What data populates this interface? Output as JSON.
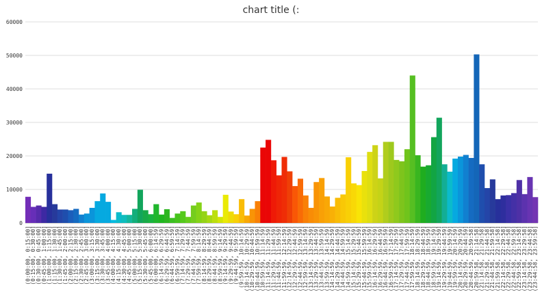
{
  "chart_data": {
    "type": "bar",
    "title": "chart title (:",
    "categories": [
      "(0:00:00, 0:15:00]",
      "(0:15:00, 0:30:00]",
      "(0:30:00, 0:45:00]",
      "(0:45:00, 1:00:00]",
      "(1:00:00, 1:15:00]",
      "(1:15:00, 1:30:00]",
      "(1:30:00, 1:45:00]",
      "(1:45:00, 2:00:00]",
      "(2:00:00, 2:15:00]",
      "(2:15:00, 2:30:00]",
      "(2:30:00, 2:45:00]",
      "(2:45:00, 3:00:00]",
      "(3:00:00, 3:15:00]",
      "(3:15:00, 3:30:00]",
      "(3:30:00, 3:45:00]",
      "(3:45:00, 4:00:00]",
      "(4:00:00, 4:15:00]",
      "(4:15:00, 4:30:00]",
      "(4:30:00, 4:45:00]",
      "(4:45:00, 5:00:00]",
      "(5:00:00, 5:15:00]",
      "(5:15:00, 5:30:00]",
      "(5:30:00, 5:45:00]",
      "(5:45:00, 6:00:00]",
      "(6:00:00, 6:14:59]",
      "(6:14:59, 6:29:59]",
      "(6:29:59, 6:44:59]",
      "(6:44:59, 6:59:59]",
      "(6:59:59, 7:14:59]",
      "(7:14:59, 7:29:59]",
      "(7:29:59, 7:44:59]",
      "(7:44:59, 7:59:59]",
      "(7:59:59, 8:14:59]",
      "(8:14:59, 8:29:59]",
      "(8:29:59, 8:44:59]",
      "(8:44:59, 8:59:59]",
      "(8:59:59, 9:14:59]",
      "(9:14:59, 9:29:59]",
      "(9:29:59, 9:44:59]",
      "(9:44:59, 9:59:59]",
      "(9:59:59, 10:14:59]",
      "(10:14:59, 10:29:59]",
      "(10:29:59, 10:44:59]",
      "(10:44:59, 10:59:59]",
      "(10:59:59, 11:14:59]",
      "(11:14:59, 11:29:59]",
      "(11:29:59, 11:44:59]",
      "(11:44:59, 11:59:59]",
      "(11:59:59, 12:14:59]",
      "(12:14:59, 12:29:59]",
      "(12:29:59, 12:44:59]",
      "(12:44:59, 12:59:59]",
      "(12:59:59, 13:14:59]",
      "(13:14:59, 13:29:59]",
      "(13:29:59, 13:44:59]",
      "(13:44:59, 13:59:59]",
      "(13:59:59, 14:14:59]",
      "(14:14:59, 14:29:59]",
      "(14:29:59, 14:44:59]",
      "(14:44:59, 14:59:59]",
      "(14:59:59, 15:14:59]",
      "(15:14:59, 15:29:59]",
      "(15:29:59, 15:44:59]",
      "(15:44:59, 15:59:59]",
      "(15:59:59, 16:14:59]",
      "(16:14:59, 16:29:59]",
      "(16:29:59, 16:44:59]",
      "(16:44:59, 16:59:59]",
      "(16:59:59, 17:14:59]",
      "(17:14:59, 17:29:59]",
      "(17:29:59, 17:44:59]",
      "(17:44:59, 17:59:59]",
      "(17:59:59, 18:14:59]",
      "(18:14:59, 18:29:59]",
      "(18:29:59, 18:44:59]",
      "(18:44:59, 18:59:59]",
      "(18:59:59, 19:14:59]",
      "(19:14:59, 19:29:59]",
      "(19:29:59, 19:44:59]",
      "(19:44:59, 19:59:59]",
      "(19:59:59, 20:14:59]",
      "(20:14:59, 20:29:59]",
      "(20:29:59, 20:44:59]",
      "(20:44:59, 20:59:58]",
      "(20:59:58, 21:14:58]",
      "(21:14:58, 21:29:58]",
      "(21:29:58, 21:44:58]",
      "(21:44:58, 21:59:58]",
      "(21:59:58, 22:14:58]",
      "(22:14:58, 22:29:58]",
      "(22:29:58, 22:44:58]",
      "(22:44:58, 22:59:58]",
      "(22:59:58, 23:14:58]",
      "(23:14:58, 23:29:58]",
      "(23:29:58, 23:44:58]",
      "(23:44:58, 23:59:58]"
    ],
    "values": [
      7800,
      4800,
      5200,
      4800,
      14700,
      5600,
      4000,
      4000,
      3800,
      4200,
      2500,
      2800,
      4500,
      6500,
      8800,
      6300,
      900,
      3200,
      2400,
      2400,
      4200,
      9900,
      3800,
      2600,
      5600,
      2500,
      4100,
      1500,
      2800,
      3500,
      1800,
      5200,
      6100,
      3500,
      2300,
      3800,
      1800,
      8400,
      3400,
      2600,
      7100,
      2200,
      4200,
      6500,
      22500,
      24800,
      18700,
      14200,
      19700,
      15400,
      11000,
      13200,
      8200,
      4500,
      12200,
      13400,
      7900,
      4900,
      7500,
      8500,
      19600,
      11800,
      11300,
      15500,
      21200,
      23200,
      13300,
      24200,
      24200,
      18800,
      18400,
      22000,
      44000,
      20200,
      16800,
      17200,
      25600,
      31400,
      17500,
      15300,
      19200,
      19800,
      20300,
      19400,
      50300,
      17500,
      10400,
      13000,
      7100,
      8200,
      8300,
      8900,
      12800,
      8600,
      13700,
      7700
    ],
    "colors": [
      "hsl(270,60%,45%)",
      "hsl(265,60%,45%)",
      "hsl(260,60%,42%)",
      "hsl(250,60%,40%)",
      "hsl(235,60%,38%)",
      "hsl(230,60%,38%)",
      "hsl(225,65%,40%)",
      "hsl(220,70%,40%)",
      "hsl(215,75%,42%)",
      "hsl(210,80%,42%)",
      "hsl(205,85%,44%)",
      "hsl(200,90%,45%)",
      "hsl(200,90%,45%)",
      "hsl(195,95%,45%)",
      "hsl(195,95%,45%)",
      "hsl(195,95%,45%)",
      "hsl(190,95%,45%)",
      "hsl(185,90%,42%)",
      "hsl(180,85%,40%)",
      "hsl(170,80%,40%)",
      "hsl(160,80%,38%)",
      "hsl(150,80%,36%)",
      "hsl(140,75%,38%)",
      "hsl(135,75%,40%)",
      "hsl(125,70%,42%)",
      "hsl(120,70%,42%)",
      "hsl(115,70%,42%)",
      "hsl(110,70%,44%)",
      "hsl(105,75%,44%)",
      "hsl(100,75%,45%)",
      "hsl(95,75%,46%)",
      "hsl(90,75%,46%)",
      "hsl(85,80%,46%)",
      "hsl(80,80%,46%)",
      "hsl(75,85%,46%)",
      "hsl(70,90%,46%)",
      "hsl(65,95%,46%)",
      "hsl(60,95%,47%)",
      "hsl(55,95%,48%)",
      "hsl(50,95%,50%)",
      "hsl(45,95%,50%)",
      "hsl(40,95%,50%)",
      "hsl(35,95%,50%)",
      "hsl(30,95%,50%)",
      "hsl(0,95%,47%)",
      "hsl(0,95%,47%)",
      "hsl(5,95%,48%)",
      "hsl(8,95%,48%)",
      "hsl(10,95%,48%)",
      "hsl(15,95%,48%)",
      "hsl(20,95%,50%)",
      "hsl(25,95%,50%)",
      "hsl(30,95%,50%)",
      "hsl(33,95%,50%)",
      "hsl(35,95%,50%)",
      "hsl(38,95%,50%)",
      "hsl(40,95%,50%)",
      "hsl(42,95%,50%)",
      "hsl(45,95%,50%)",
      "hsl(48,95%,50%)",
      "hsl(50,95%,50%)",
      "hsl(52,95%,50%)",
      "hsl(55,95%,50%)",
      "hsl(58,90%,48%)",
      "hsl(60,85%,47%)",
      "hsl(62,80%,46%)",
      "hsl(65,80%,46%)",
      "hsl(70,75%,46%)",
      "hsl(75,75%,45%)",
      "hsl(80,75%,45%)",
      "hsl(85,75%,44%)",
      "hsl(90,75%,44%)",
      "hsl(100,70%,44%)",
      "hsl(110,70%,42%)",
      "hsl(120,70%,40%)",
      "hsl(130,75%,38%)",
      "hsl(140,80%,36%)",
      "hsl(150,80%,36%)",
      "hsl(170,80%,38%)",
      "hsl(185,90%,42%)",
      "hsl(195,95%,45%)",
      "hsl(200,90%,45%)",
      "hsl(205,85%,44%)",
      "hsl(210,80%,42%)",
      "hsl(210,80%,40%)",
      "hsl(220,70%,40%)",
      "hsl(225,65%,40%)",
      "hsl(230,60%,38%)",
      "hsl(235,60%,38%)",
      "hsl(240,55%,40%)",
      "hsl(245,55%,42%)",
      "hsl(250,55%,42%)",
      "hsl(255,55%,42%)",
      "hsl(260,55%,44%)",
      "hsl(265,55%,45%)",
      "hsl(270,55%,45%)"
    ],
    "ylim": [
      0,
      60000
    ],
    "yticks": [
      0,
      10000,
      20000,
      30000,
      40000,
      50000,
      60000
    ],
    "grid": true
  }
}
